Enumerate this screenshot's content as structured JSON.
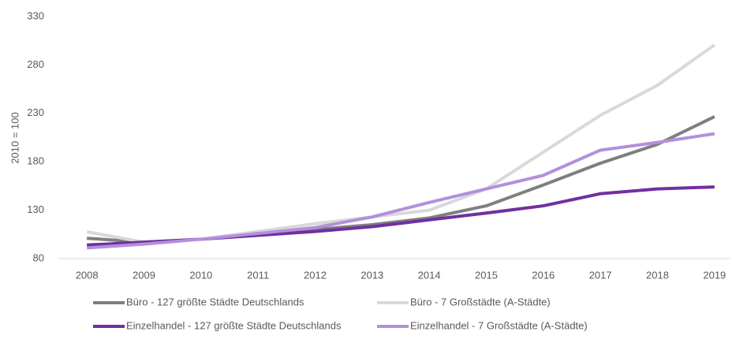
{
  "chart_data": {
    "type": "line",
    "ylabel": "2010 = 100",
    "categories": [
      "2008",
      "2009",
      "2010",
      "2011",
      "2012",
      "2013",
      "2014",
      "2015",
      "2016",
      "2017",
      "2018",
      "2019"
    ],
    "series": [
      {
        "name": "Büro - 127 größte Städte Deutschlands",
        "color": "#7f7f7f",
        "values": [
          101,
          97,
          100,
          105,
          110,
          115,
          122,
          134.5,
          156,
          178.5,
          198,
          226.6
        ]
      },
      {
        "name": "Büro - 7 Großstädte (A-Städte)",
        "color": "#d9d9d9",
        "values": [
          107.7,
          97,
          100,
          108,
          116,
          123,
          130,
          152,
          190,
          228,
          259,
          300.7
        ]
      },
      {
        "name": "Einzelhandel - 127 größte Städte Deutschlands",
        "color": "#7030a0",
        "values": [
          94,
          97,
          100,
          104,
          108,
          113,
          120,
          127,
          134.5,
          147,
          152,
          154
        ]
      },
      {
        "name": "Einzelhandel - 7 Großstädte (A-Städte)",
        "color": "#b48fdc",
        "values": [
          91,
          95,
          100,
          106,
          112,
          123,
          138,
          152,
          166,
          192,
          200,
          209
        ]
      }
    ],
    "ylim": [
      80,
      330
    ],
    "yticks": [
      80,
      130,
      180,
      230,
      280,
      330
    ],
    "grid": false
  }
}
